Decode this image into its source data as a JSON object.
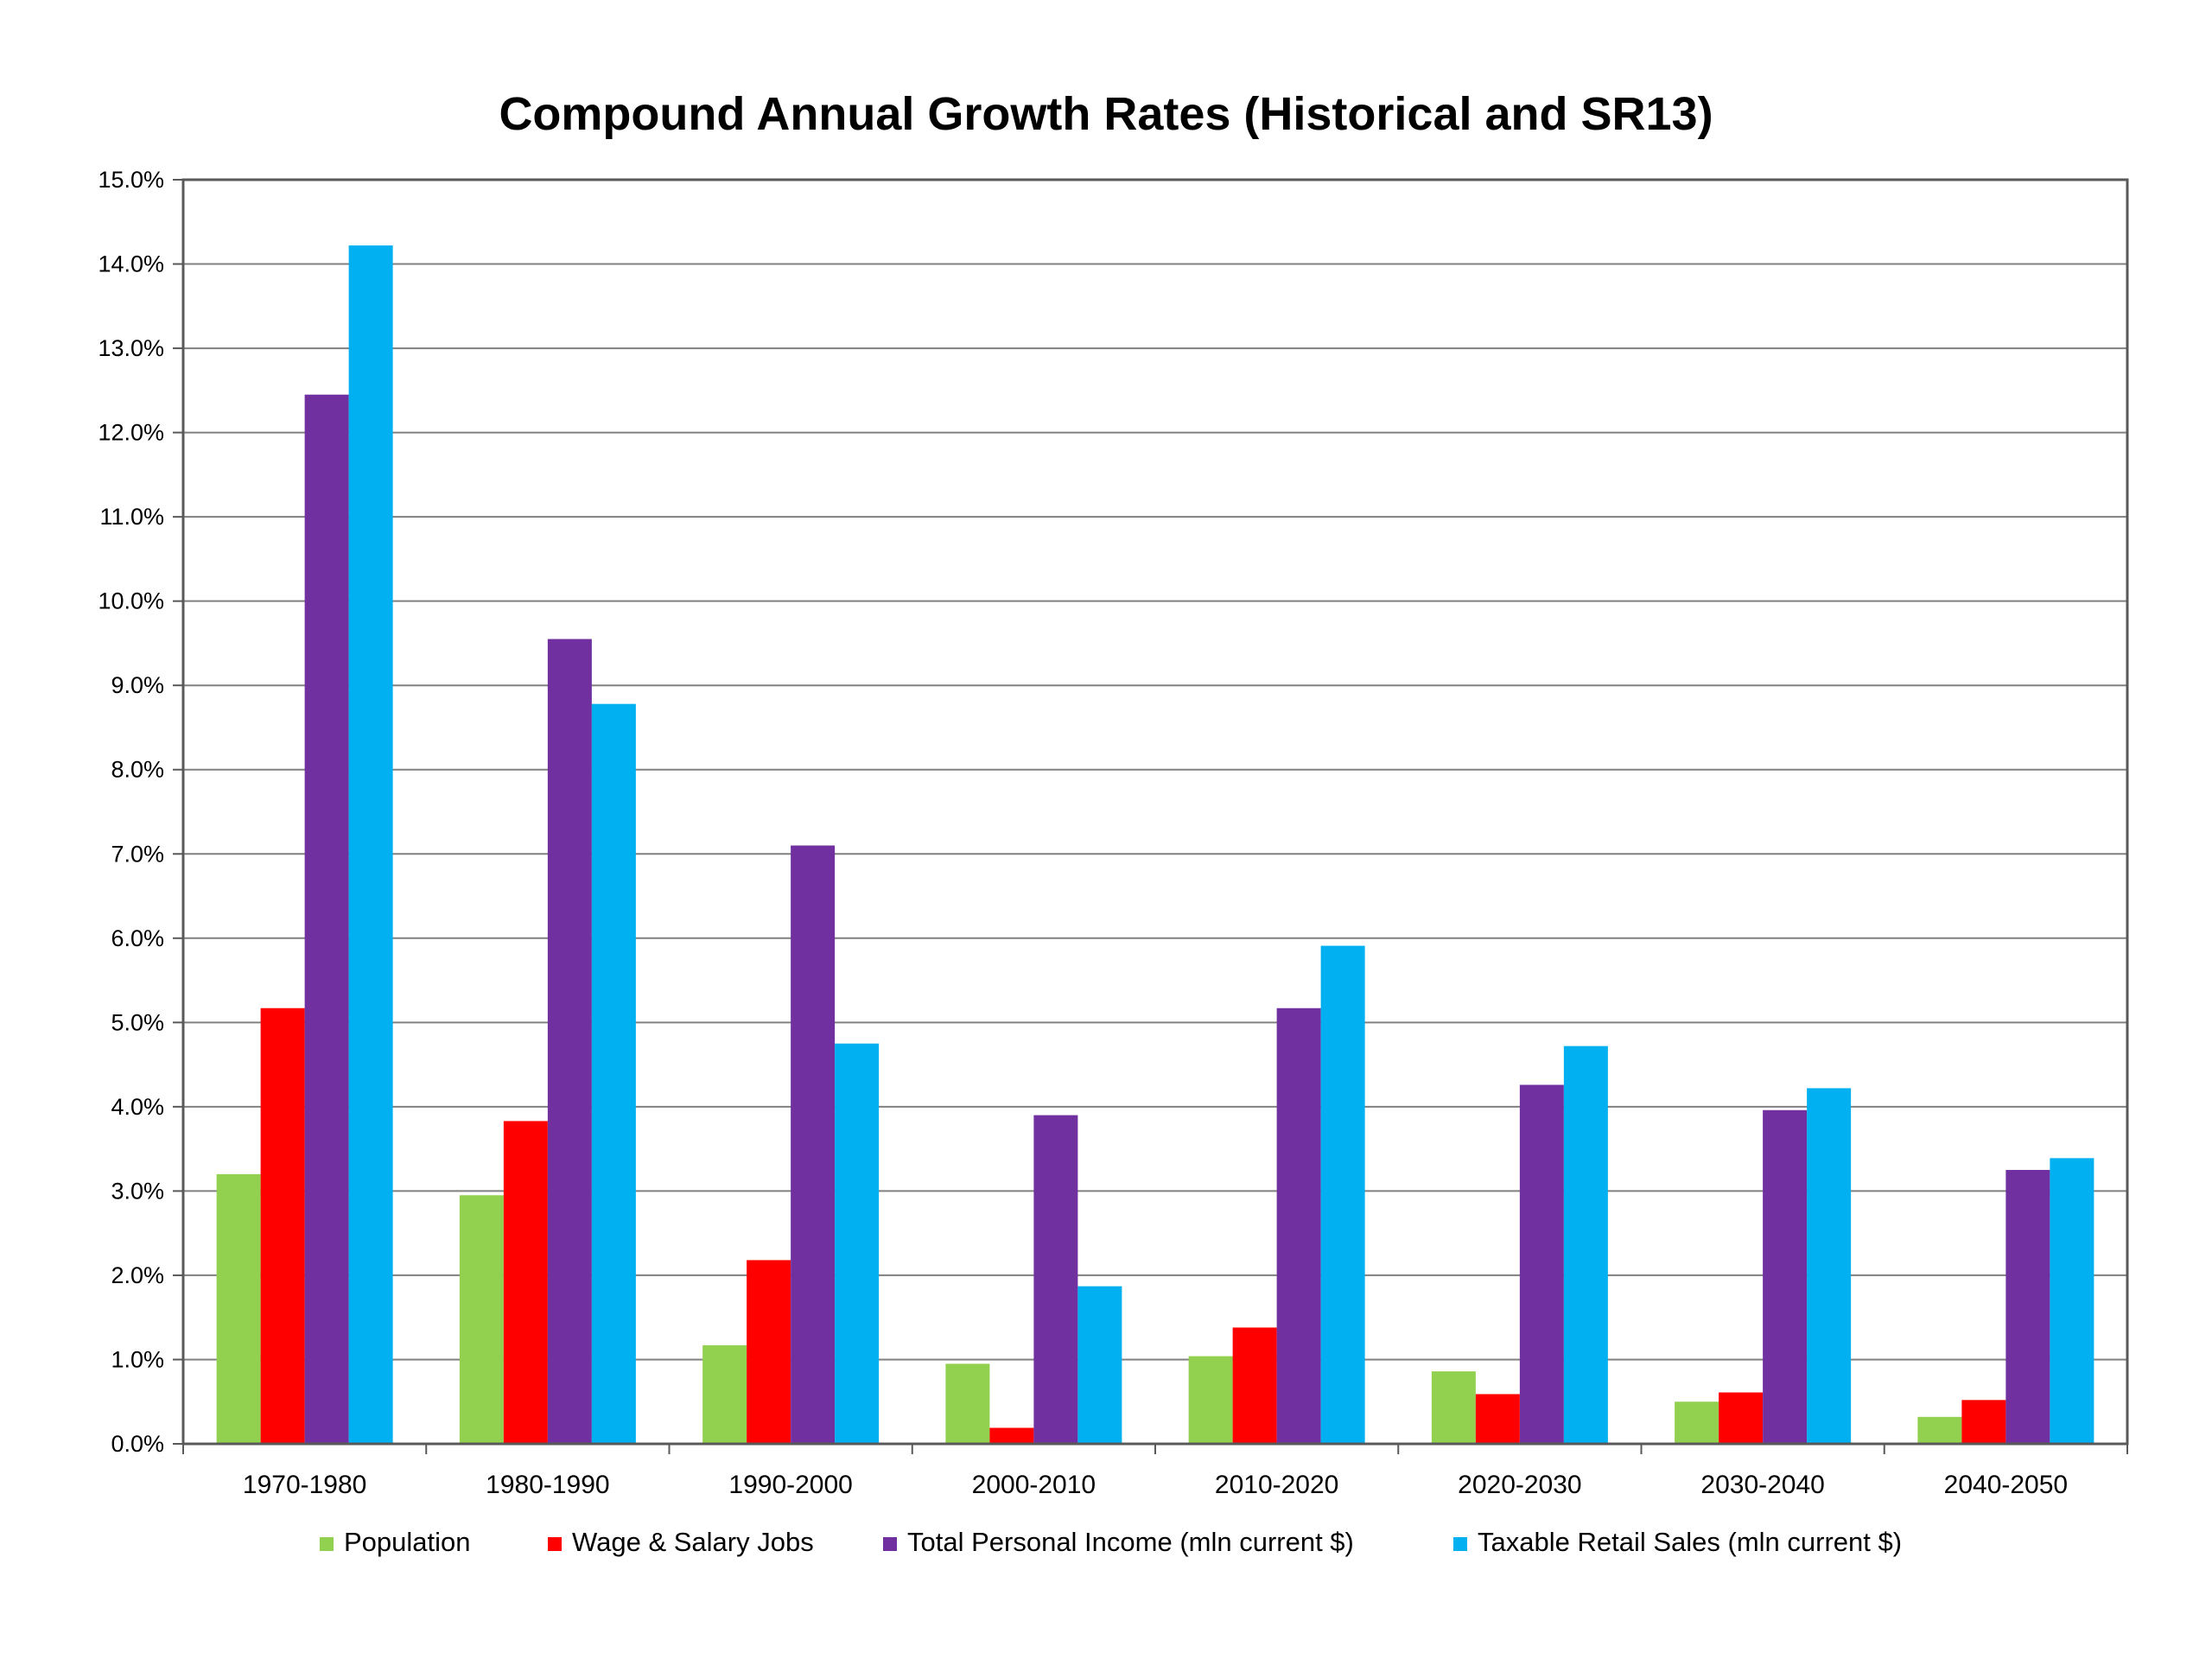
{
  "chart_data": {
    "type": "bar",
    "title": "Compound Annual Growth Rates (Historical and SR13)",
    "xlabel": "",
    "ylabel": "",
    "ylim": [
      0,
      15
    ],
    "y_ticks": [
      "0.0%",
      "1.0%",
      "2.0%",
      "3.0%",
      "4.0%",
      "5.0%",
      "6.0%",
      "7.0%",
      "8.0%",
      "9.0%",
      "10.0%",
      "11.0%",
      "12.0%",
      "13.0%",
      "14.0%",
      "15.0%"
    ],
    "grid": true,
    "legend_position": "bottom",
    "categories": [
      "1970-1980",
      "1980-1990",
      "1990-2000",
      "2000-2010",
      "2010-2020",
      "2020-2030",
      "2030-2040",
      "2040-2050"
    ],
    "series": [
      {
        "name": "Population",
        "color": "#92d050",
        "values": [
          3.2,
          2.95,
          1.17,
          0.95,
          1.04,
          0.86,
          0.5,
          0.32
        ]
      },
      {
        "name": "Wage & Salary Jobs",
        "color": "#ff0000",
        "values": [
          5.17,
          3.83,
          2.18,
          0.19,
          1.38,
          0.59,
          0.61,
          0.52
        ]
      },
      {
        "name": "Total Personal Income (mln current $)",
        "color": "#7030a0",
        "values": [
          12.45,
          9.55,
          7.1,
          3.9,
          5.17,
          4.26,
          3.96,
          3.25
        ]
      },
      {
        "name": "Taxable Retail Sales (mln current $)",
        "color": "#00b0f0",
        "values": [
          14.22,
          8.78,
          4.75,
          1.87,
          5.91,
          4.72,
          4.22,
          3.39
        ]
      }
    ]
  }
}
